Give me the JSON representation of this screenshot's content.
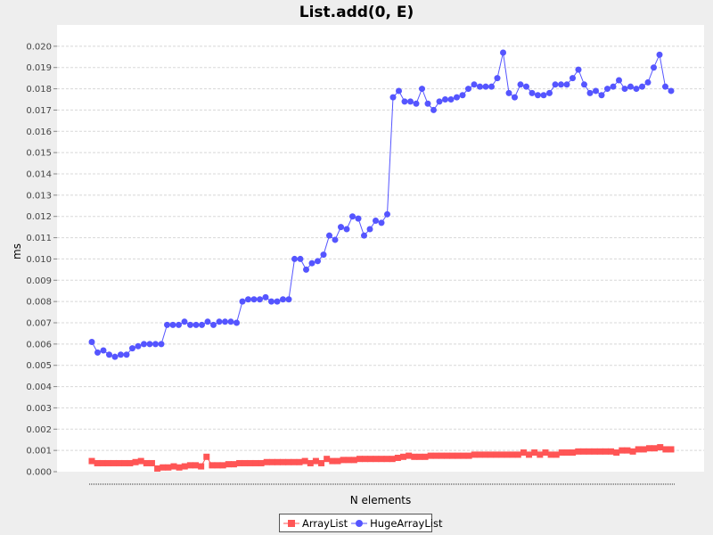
{
  "chart_data": {
    "type": "line",
    "title": "List.add(0, E)",
    "xlabel": "N elements",
    "ylabel": "ms",
    "ylim": [
      0,
      0.021
    ],
    "yticks": [
      "0.000",
      "0.001",
      "0.002",
      "0.003",
      "0.004",
      "0.005",
      "0.006",
      "0.007",
      "0.008",
      "0.009",
      "0.010",
      "0.011",
      "0.012",
      "0.013",
      "0.014",
      "0.015",
      "0.016",
      "0.017",
      "0.018",
      "0.019",
      "0.020"
    ],
    "grid": true,
    "legend_position": "bottom",
    "series": [
      {
        "name": "ArrayList",
        "color": "#ff5555",
        "marker": "square",
        "values": [
          0.0005,
          0.0004,
          0.0004,
          0.0004,
          0.0004,
          0.0004,
          0.0004,
          0.0004,
          0.00045,
          0.0005,
          0.0004,
          0.0004,
          0.00015,
          0.0002,
          0.0002,
          0.00025,
          0.0002,
          0.00025,
          0.0003,
          0.0003,
          0.00025,
          0.0007,
          0.0003,
          0.0003,
          0.0003,
          0.00035,
          0.00035,
          0.0004,
          0.0004,
          0.0004,
          0.0004,
          0.0004,
          0.00045,
          0.00045,
          0.00045,
          0.00045,
          0.00045,
          0.00045,
          0.00045,
          0.0005,
          0.0004,
          0.0005,
          0.0004,
          0.0006,
          0.0005,
          0.0005,
          0.00055,
          0.00055,
          0.00055,
          0.0006,
          0.0006,
          0.0006,
          0.0006,
          0.0006,
          0.0006,
          0.0006,
          0.00065,
          0.0007,
          0.00075,
          0.0007,
          0.0007,
          0.0007,
          0.00075,
          0.00075,
          0.00075,
          0.00075,
          0.00075,
          0.00075,
          0.00075,
          0.00075,
          0.0008,
          0.0008,
          0.0008,
          0.0008,
          0.0008,
          0.0008,
          0.0008,
          0.0008,
          0.0008,
          0.0009,
          0.0008,
          0.0009,
          0.0008,
          0.0009,
          0.0008,
          0.0008,
          0.0009,
          0.0009,
          0.0009,
          0.00095,
          0.00095,
          0.00095,
          0.00095,
          0.00095,
          0.00095,
          0.00095,
          0.0009,
          0.001,
          0.001,
          0.00095,
          0.00105,
          0.00105,
          0.0011,
          0.0011,
          0.00115,
          0.00105,
          0.00105
        ]
      },
      {
        "name": "HugeArrayList",
        "color": "#5555ff",
        "marker": "circle",
        "values": [
          0.0061,
          0.0056,
          0.0057,
          0.0055,
          0.0054,
          0.0055,
          0.0055,
          0.0058,
          0.0059,
          0.006,
          0.006,
          0.006,
          0.006,
          0.0069,
          0.0069,
          0.0069,
          0.00705,
          0.0069,
          0.0069,
          0.0069,
          0.00705,
          0.0069,
          0.00705,
          0.00705,
          0.00705,
          0.007,
          0.008,
          0.0081,
          0.0081,
          0.0081,
          0.0082,
          0.008,
          0.008,
          0.0081,
          0.0081,
          0.01,
          0.01,
          0.0095,
          0.0098,
          0.0099,
          0.0102,
          0.0111,
          0.0109,
          0.0115,
          0.0114,
          0.012,
          0.0119,
          0.0111,
          0.0114,
          0.0118,
          0.0117,
          0.0121,
          0.0176,
          0.0179,
          0.0174,
          0.0174,
          0.0173,
          0.018,
          0.0173,
          0.017,
          0.0174,
          0.0175,
          0.0175,
          0.0176,
          0.0177,
          0.018,
          0.0182,
          0.0181,
          0.0181,
          0.0181,
          0.0185,
          0.0197,
          0.0178,
          0.0176,
          0.0182,
          0.0181,
          0.0178,
          0.0177,
          0.0177,
          0.0178,
          0.0182,
          0.0182,
          0.0182,
          0.0185,
          0.0189,
          0.0182,
          0.0178,
          0.0179,
          0.0177,
          0.018,
          0.0181,
          0.0184,
          0.018,
          0.0181,
          0.018,
          0.0181,
          0.0183,
          0.019,
          0.0196,
          0.0181,
          0.0179
        ]
      }
    ]
  }
}
